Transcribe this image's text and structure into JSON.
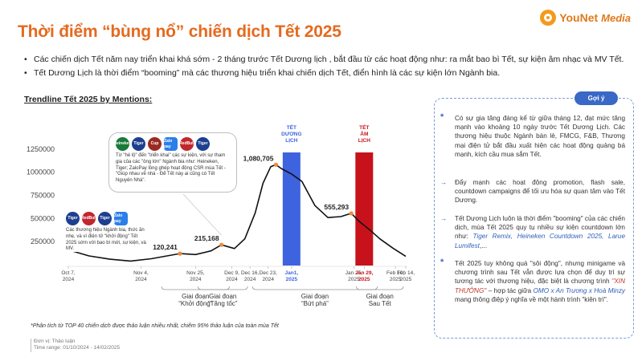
{
  "header": {
    "title": "Thời điểm “bùng nổ” chiến dịch Tết 2025",
    "logo_name": "YouNet",
    "logo_suffix": "Media"
  },
  "intro": {
    "bullets": [
      "Các chiến dịch Tết năm nay triển khai khá sớm - 2 tháng trước Tết Dương lịch , bắt đầu từ các hoạt động như: ra mắt bao bì Tết, sự kiện âm nhạc và MV Tết.",
      "Tết Dương Lịch là thời điểm “booming” mà các thương hiệu triển khai chiến dịch Tết, điển hình là các sự kiện lớn Ngành bia."
    ]
  },
  "chart_data": {
    "type": "line",
    "title": "Trendline Tết 2025 by Mentions:",
    "x": [
      "Oct 7, 2024",
      "Nov 4, 2024",
      "Nov 25, 2024",
      "Dec 9, 2024",
      "Dec 16, 2024",
      "Dec 23, 2024",
      "Jan1, 2025",
      "Jan 25, 2025",
      "Jan 29, 2025",
      "Feb 10, 2025",
      "Feb 14, 2025"
    ],
    "x_days": [
      0,
      28,
      49,
      63,
      70,
      77,
      86,
      110,
      114,
      126,
      130
    ],
    "y_ticks": [
      0,
      250000,
      500000,
      750000,
      1000000,
      1250000
    ],
    "y_tick_labels": [
      "",
      "250000",
      "500000",
      "750000",
      "1000000",
      "1250000"
    ],
    "ylim": [
      0,
      1300000
    ],
    "series": [
      {
        "name": "Mentions",
        "points": [
          {
            "day": 0,
            "value": 160000
          },
          {
            "day": 8,
            "value": 95000
          },
          {
            "day": 16,
            "value": 60000
          },
          {
            "day": 24,
            "value": 40000
          },
          {
            "day": 32,
            "value": 65000
          },
          {
            "day": 38,
            "value": 95000
          },
          {
            "day": 43,
            "value": 120241
          },
          {
            "day": 49,
            "value": 110000
          },
          {
            "day": 55,
            "value": 150000
          },
          {
            "day": 59,
            "value": 215168
          },
          {
            "day": 64,
            "value": 175000
          },
          {
            "day": 68,
            "value": 280000
          },
          {
            "day": 72,
            "value": 560000
          },
          {
            "day": 75,
            "value": 880000
          },
          {
            "day": 78,
            "value": 1060000
          },
          {
            "day": 80,
            "value": 1080705
          },
          {
            "day": 82,
            "value": 1040000
          },
          {
            "day": 86,
            "value": 980000
          },
          {
            "day": 90,
            "value": 900000
          },
          {
            "day": 95,
            "value": 640000
          },
          {
            "day": 100,
            "value": 510000
          },
          {
            "day": 105,
            "value": 520000
          },
          {
            "day": 109,
            "value": 555293
          },
          {
            "day": 112,
            "value": 470000
          },
          {
            "day": 116,
            "value": 380000
          },
          {
            "day": 120,
            "value": 280000
          },
          {
            "day": 125,
            "value": 180000
          },
          {
            "day": 130,
            "value": 90000
          }
        ]
      }
    ],
    "peaks": [
      {
        "day": 43,
        "value": 120241,
        "label": "120,241"
      },
      {
        "day": 59,
        "value": 215168,
        "label": "215,168"
      },
      {
        "day": 80,
        "value": 1080705,
        "label": "1,080,705"
      },
      {
        "day": 109,
        "value": 555293,
        "label": "555,293"
      }
    ],
    "highlight_bars": [
      {
        "day": 86,
        "label": "TẾT\nDƯƠNG\nLỊCH",
        "color": "#3e63df"
      },
      {
        "day": 114,
        "label": "TẾT\nÂM\nLỊCH",
        "color": "#c8121b"
      }
    ],
    "phases": [
      {
        "from_day": 35,
        "to_day": 63,
        "label": "Giai đoạn\n“Khởi động”"
      },
      {
        "from_day": 49,
        "to_day": 70,
        "label": "Giai đoạn\n“Tăng tốc”"
      },
      {
        "from_day": 70,
        "to_day": 120,
        "label": "Giai đoạn\n“Bứt phá”"
      },
      {
        "from_day": 110,
        "to_day": 130,
        "label": "Giai đoạn\nSau Tết"
      }
    ],
    "line_color": "#111111",
    "peak_color": "#f08a3b"
  },
  "callouts": {
    "top": "Từ \"hé lộ\" đến \"triển khai\" các sự kiện, với sự tham gia của các \"ông lớn\" Ngành bia như: Heineken, Tiger; ZaloPay lồng ghép hoạt động CSR mùa Tết - \"Giúp nhau về nhà - Để Tết này ai cũng có Tết Nguyên Nhà\".",
    "left": "Các thương hiệu Ngành bia, thức ăn nhẹ, và ví điện tử \"khởi động\" Tết 2025 sớm với bao bì mới, sự kiện, và MV.",
    "logos_top": [
      "Heineken",
      "Tiger",
      "Cup",
      "Zalo pay",
      "RedBull",
      "Tiger"
    ],
    "logos_left": [
      "Tiger",
      "RedBull",
      "Tiger",
      "Zalo pay"
    ]
  },
  "footnote": "*Phân tích từ TOP 40 chiến dịch được thảo luận nhiều nhất, chiếm 95% thảo luận của toàn mùa Tết",
  "meta": {
    "unit": "Đơn vị: Thảo luận",
    "range": "Time range: 01/10/2024 - 14/02/2025"
  },
  "panel": {
    "tag": "Gợi ý",
    "items": [
      {
        "marker": "*",
        "text": "Có sự gia tăng đáng kể từ giữa tháng 12, đạt mức tăng mạnh vào khoảng 10 ngày trước Tết Dương Lịch. Các thương hiệu thuộc Ngành bán lẻ, FMCG, F&B, Thương mại điện tử bắt đầu xuất hiện các hoạt động quảng bá mạnh, kích cầu mua sắm Tết."
      },
      {
        "marker": "→",
        "text": "Đẩy mạnh các hoạt động promotion, flash sale, countdown campaigns để tối ưu hóa sự quan tâm vào Tết Dương."
      },
      {
        "marker": "→",
        "text_before": "Tết Dương Lịch luôn là thời điểm \"booming\" của các chiến dịch, mùa Tết 2025 quy tụ nhiều sự kiện countdown lớn như: ",
        "highlight": "Tiger Remix, Heineken Countdown 2025, Larue Lumifest",
        "text_after": ",..."
      },
      {
        "marker": "*",
        "text_before": "Tết 2025 tuy không quá \"sôi động\", nhưng minigame và chương trình sau Tết vẫn được lựa chọn để duy trì sự tương tác với thương hiệu, đặc biệt là chương trình ",
        "highlight": "\"XIN THƯỞNG\"",
        "text_middle": " – hợp tác giữa ",
        "highlight2": "OMO x An Trương x Hoà Minzy",
        "text_after": " mang thông điệp ý nghĩa về một hành trình \"kiên trì\"."
      }
    ]
  }
}
